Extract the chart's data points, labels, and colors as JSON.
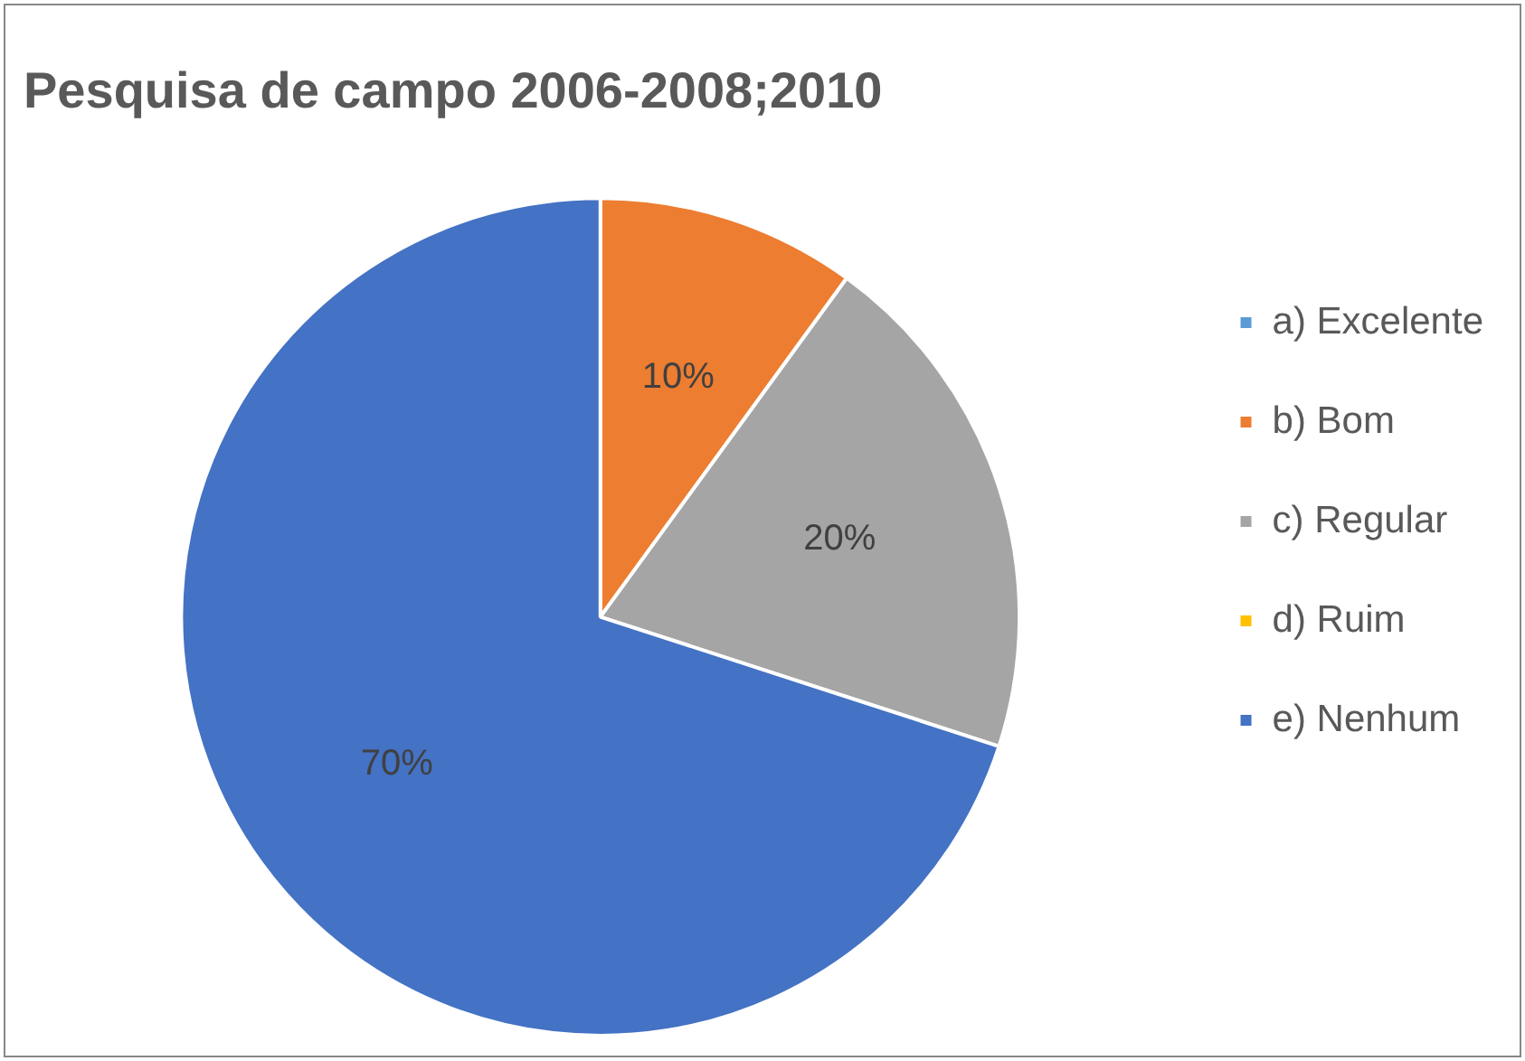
{
  "chart_data": {
    "type": "pie",
    "title": "Pesquisa de campo 2006-2008;2010",
    "categories": [
      "a) Excelente",
      "b) Bom",
      "c) Regular",
      "d) Ruim",
      "e) Nenhum"
    ],
    "values": [
      0,
      10,
      20,
      0,
      70
    ],
    "colors": [
      "#5b9bd5",
      "#ed7d31",
      "#a5a5a5",
      "#ffc000",
      "#4472c4"
    ],
    "value_labels": [
      null,
      "10%",
      "20%",
      null,
      "70%"
    ],
    "legend": "right"
  }
}
